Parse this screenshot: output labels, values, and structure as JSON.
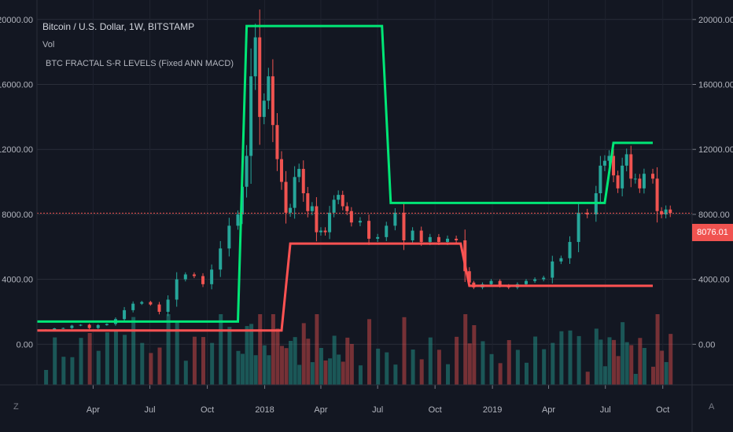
{
  "header": {
    "symbol_title": "Bitcoin / U.S. Dollar, 1W, BITSTAMP",
    "volume_label": "Vol",
    "indicator_label": "BTC FRACTAL S-R LEVELS (Fixed ANN MACD)"
  },
  "price_tag": "8076.01",
  "corner_left": "Z",
  "corner_right": "A",
  "colors": {
    "background": "#131722",
    "up": "#26a69a",
    "down": "#ef5350",
    "resistance": "#00e676",
    "support": "#ff5252",
    "grid": "#2a2e39"
  },
  "chart_data": {
    "type": "candlestick",
    "title": "Bitcoin / U.S. Dollar, 1W, BITSTAMP",
    "y_ticks": [
      "20000.00",
      "16000.00",
      "12000.00",
      "8000.00",
      "4000.00",
      "0.00"
    ],
    "y_tick_values": [
      20000,
      16000,
      12000,
      8000,
      4000,
      0
    ],
    "ylim": [
      -2500,
      21200
    ],
    "x_tick_labels": [
      "Apr",
      "Jul",
      "Oct",
      "2018",
      "Apr",
      "Jul",
      "Oct",
      "2019",
      "Apr",
      "Jul",
      "Oct"
    ],
    "x_range": [
      "2017-01-01",
      "2019-11-17"
    ],
    "x_tick_dates": [
      "2017-04-01",
      "2017-07-01",
      "2017-10-01",
      "2018-01-01",
      "2018-04-01",
      "2018-07-01",
      "2018-10-01",
      "2019-01-01",
      "2019-04-01",
      "2019-07-01",
      "2019-10-01"
    ],
    "last_price": 8076.01,
    "weekly_close": [
      [
        "2017-01-15",
        900
      ],
      [
        "2017-01-29",
        980
      ],
      [
        "2017-02-12",
        1000
      ],
      [
        "2017-02-26",
        1150
      ],
      [
        "2017-03-12",
        1200
      ],
      [
        "2017-03-26",
        1000
      ],
      [
        "2017-04-09",
        1180
      ],
      [
        "2017-04-23",
        1250
      ],
      [
        "2017-05-07",
        1550
      ],
      [
        "2017-05-21",
        2100
      ],
      [
        "2017-06-04",
        2500
      ],
      [
        "2017-06-18",
        2600
      ],
      [
        "2017-07-02",
        2450
      ],
      [
        "2017-07-16",
        2000
      ],
      [
        "2017-07-30",
        2750
      ],
      [
        "2017-08-13",
        4000
      ],
      [
        "2017-08-27",
        4300
      ],
      [
        "2017-09-10",
        4200
      ],
      [
        "2017-09-24",
        3700
      ],
      [
        "2017-10-08",
        4600
      ],
      [
        "2017-10-22",
        5900
      ],
      [
        "2017-11-05",
        7300
      ],
      [
        "2017-11-19",
        8000
      ],
      [
        "2017-11-26",
        9700
      ],
      [
        "2017-12-03",
        11600
      ],
      [
        "2017-12-10",
        16500
      ],
      [
        "2017-12-17",
        18900
      ],
      [
        "2017-12-24",
        14000
      ],
      [
        "2017-12-31",
        15000
      ],
      [
        "2018-01-07",
        16500
      ],
      [
        "2018-01-14",
        13500
      ],
      [
        "2018-01-21",
        11400
      ],
      [
        "2018-01-28",
        10000
      ],
      [
        "2018-02-04",
        8100
      ],
      [
        "2018-02-11",
        8400
      ],
      [
        "2018-02-18",
        10300
      ],
      [
        "2018-02-25",
        10800
      ],
      [
        "2018-03-04",
        9300
      ],
      [
        "2018-03-11",
        8200
      ],
      [
        "2018-03-18",
        8500
      ],
      [
        "2018-03-25",
        6900
      ],
      [
        "2018-04-01",
        7000
      ],
      [
        "2018-04-08",
        6900
      ],
      [
        "2018-04-15",
        8100
      ],
      [
        "2018-04-22",
        8900
      ],
      [
        "2018-04-29",
        9200
      ],
      [
        "2018-05-06",
        8500
      ],
      [
        "2018-05-13",
        8200
      ],
      [
        "2018-05-20",
        7500
      ],
      [
        "2018-06-03",
        7600
      ],
      [
        "2018-06-17",
        6500
      ],
      [
        "2018-07-01",
        6600
      ],
      [
        "2018-07-15",
        7300
      ],
      [
        "2018-07-29",
        8100
      ],
      [
        "2018-08-12",
        6400
      ],
      [
        "2018-08-26",
        7000
      ],
      [
        "2018-09-09",
        6300
      ],
      [
        "2018-09-23",
        6600
      ],
      [
        "2018-10-07",
        6300
      ],
      [
        "2018-10-21",
        6500
      ],
      [
        "2018-11-04",
        6400
      ],
      [
        "2018-11-18",
        4500
      ],
      [
        "2018-11-25",
        3800
      ],
      [
        "2018-12-02",
        3500
      ],
      [
        "2018-12-16",
        3700
      ],
      [
        "2018-12-30",
        3900
      ],
      [
        "2019-01-13",
        3600
      ],
      [
        "2019-01-27",
        3500
      ],
      [
        "2019-02-10",
        3700
      ],
      [
        "2019-02-24",
        3900
      ],
      [
        "2019-03-10",
        4000
      ],
      [
        "2019-03-24",
        4100
      ],
      [
        "2019-04-07",
        5100
      ],
      [
        "2019-04-21",
        5300
      ],
      [
        "2019-05-05",
        6300
      ],
      [
        "2019-05-19",
        8100
      ],
      [
        "2019-06-02",
        8000
      ],
      [
        "2019-06-16",
        9300
      ],
      [
        "2019-06-23",
        11000
      ],
      [
        "2019-06-30",
        11300
      ],
      [
        "2019-07-07",
        11600
      ],
      [
        "2019-07-14",
        10400
      ],
      [
        "2019-07-21",
        9600
      ],
      [
        "2019-07-28",
        11000
      ],
      [
        "2019-08-04",
        11700
      ],
      [
        "2019-08-11",
        10200
      ],
      [
        "2019-08-18",
        10200
      ],
      [
        "2019-08-25",
        9600
      ],
      [
        "2019-09-01",
        10500
      ],
      [
        "2019-09-15",
        10200
      ],
      [
        "2019-09-22",
        8200
      ],
      [
        "2019-09-29",
        8000
      ],
      [
        "2019-10-06",
        8300
      ],
      [
        "2019-10-13",
        8076
      ]
    ],
    "series": [
      {
        "color": "#00e676",
        "points": [
          [
            "2017-01-01",
            1400
          ],
          [
            "2017-11-19",
            1400
          ],
          [
            "2017-12-03",
            19600
          ],
          [
            "2018-07-08",
            19600
          ],
          [
            "2018-07-22",
            8700
          ],
          [
            "2019-06-23",
            8700
          ],
          [
            "2019-06-30",
            8700
          ],
          [
            "2019-07-14",
            12400
          ],
          [
            "2019-09-15",
            12400
          ]
        ]
      },
      {
        "color": "#ff5252",
        "points": [
          [
            "2017-01-01",
            850
          ],
          [
            "2018-01-28",
            850
          ],
          [
            "2018-02-11",
            6200
          ],
          [
            "2018-11-11",
            6200
          ],
          [
            "2018-11-25",
            3600
          ],
          [
            "2019-09-15",
            3600
          ]
        ]
      }
    ]
  }
}
